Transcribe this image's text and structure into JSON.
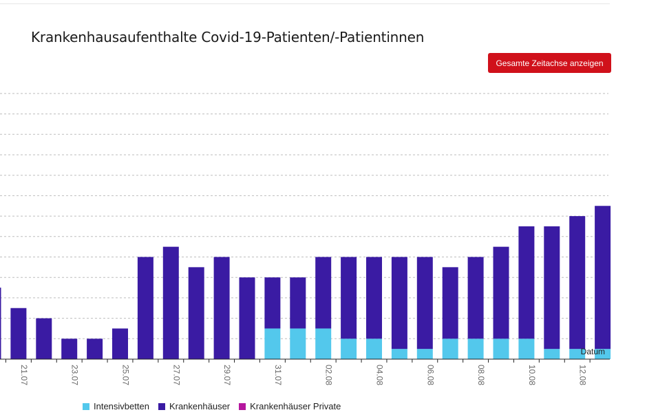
{
  "chart_data": {
    "type": "bar",
    "stacked": true,
    "title": "Krankenhausaufenthalte Covid-19-Patienten/-Patientinnen",
    "x_axis_label": "Datum",
    "categories": [
      "20.07",
      "21.07",
      "22.07",
      "23.07",
      "24.07",
      "25.07",
      "26.07",
      "27.07",
      "28.07",
      "29.07",
      "30.07",
      "31.07",
      "01.08",
      "02.08",
      "03.08",
      "04.08",
      "05.08",
      "06.08",
      "07.08",
      "08.08",
      "09.08",
      "10.08",
      "11.08",
      "12.08",
      "13.08"
    ],
    "tick_labels": [
      "21.07",
      "23.07",
      "25.07",
      "27.07",
      "29.07",
      "31.07",
      "02.08",
      "04.08",
      "06.08",
      "08.08",
      "10.08",
      "12.08"
    ],
    "series": [
      {
        "name": "Intensivbetten",
        "color": "#53c8ec",
        "values": [
          0,
          0,
          0,
          0,
          0,
          0,
          0,
          0,
          0,
          0,
          0,
          3,
          3,
          3,
          2,
          2,
          1,
          1,
          2,
          2,
          2,
          2,
          1,
          1,
          1
        ]
      },
      {
        "name": "Krankenhäuser",
        "color": "#3a1ba3",
        "values": [
          7,
          5,
          4,
          2,
          2,
          3,
          10,
          11,
          9,
          10,
          8,
          5,
          5,
          7,
          8,
          8,
          9,
          9,
          7,
          8,
          9,
          11,
          12,
          13,
          14
        ]
      },
      {
        "name": "Krankenhäuser Private",
        "color": "#b5179e",
        "values": [
          0,
          0,
          0,
          0,
          0,
          0,
          0,
          0,
          0,
          0,
          0,
          0,
          0,
          0,
          0,
          0,
          0,
          0,
          0,
          0,
          0,
          0,
          0,
          0,
          0
        ]
      }
    ],
    "ylim": [
      0,
      26
    ],
    "grid": true,
    "legend_position": "bottom-left"
  },
  "controls": {
    "reset_label": "Gesamte Zeitachse anzeigen"
  }
}
